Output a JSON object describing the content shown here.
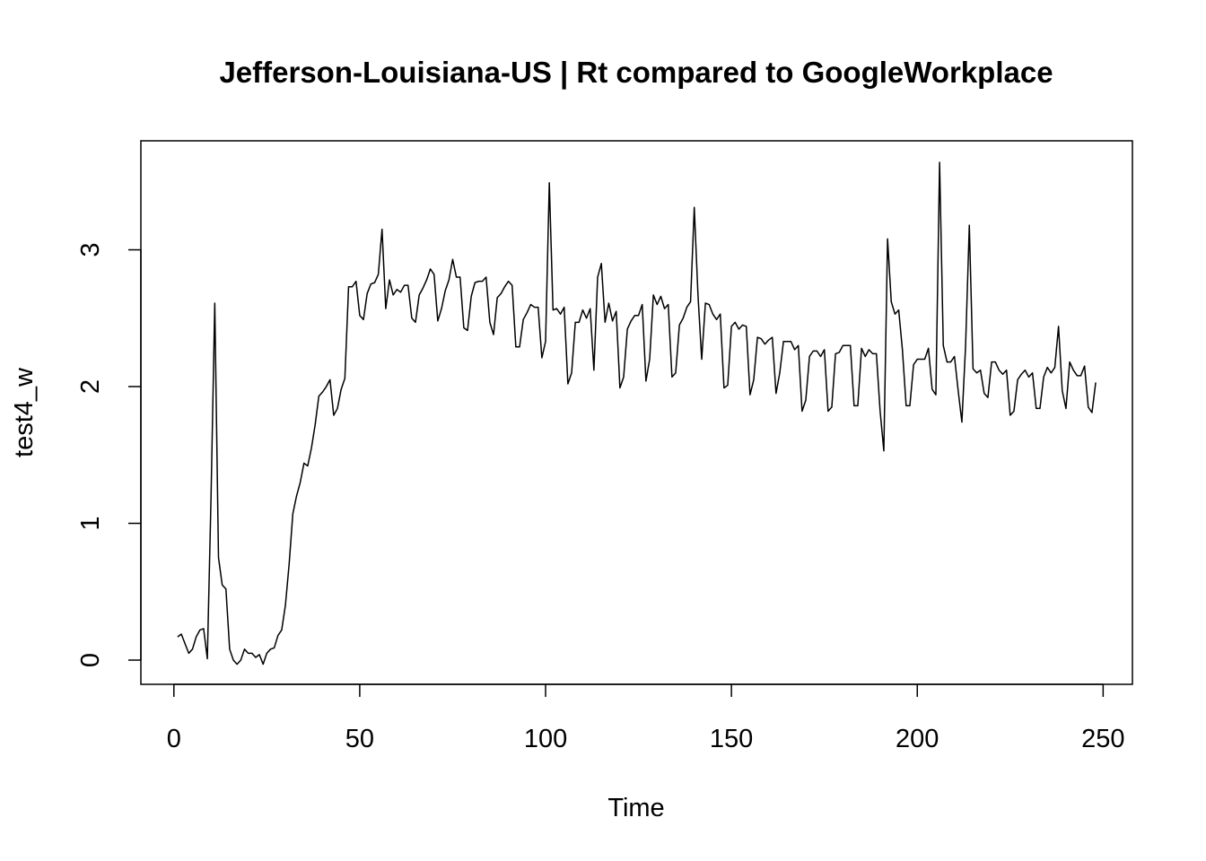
{
  "chart_data": {
    "type": "line",
    "title": "Jefferson-Louisiana-US | Rt compared to GoogleWorkplace",
    "x_label": "Time",
    "y_label": "test4_w",
    "series": [
      {
        "name": "test4_w",
        "color": "#000000",
        "x": [
          1,
          2,
          3,
          4,
          5,
          6,
          7,
          8,
          9,
          10,
          11,
          12,
          13,
          14,
          15,
          16,
          17,
          18,
          19,
          20,
          21,
          22,
          23,
          24,
          25,
          26,
          27,
          28,
          29,
          30,
          31,
          32,
          33,
          34,
          35,
          36,
          37,
          38,
          39,
          40,
          41,
          42,
          43,
          44,
          45,
          46,
          47,
          48,
          49,
          50,
          51,
          52,
          53,
          54,
          55,
          56,
          57,
          58,
          59,
          60,
          61,
          62,
          63,
          64,
          65,
          66,
          67,
          68,
          69,
          70,
          71,
          72,
          73,
          74,
          75,
          76,
          77,
          78,
          79,
          80,
          81,
          82,
          83,
          84,
          85,
          86,
          87,
          88,
          89,
          90,
          91,
          92,
          93,
          94,
          95,
          96,
          97,
          98,
          99,
          100,
          101,
          102,
          103,
          104,
          105,
          106,
          107,
          108,
          109,
          110,
          111,
          112,
          113,
          114,
          115,
          116,
          117,
          118,
          119,
          120,
          121,
          122,
          123,
          124,
          125,
          126,
          127,
          128,
          129,
          130,
          131,
          132,
          133,
          134,
          135,
          136,
          137,
          138,
          139,
          140,
          141,
          142,
          143,
          144,
          145,
          146,
          147,
          148,
          149,
          150,
          151,
          152,
          153,
          154,
          155,
          156,
          157,
          158,
          159,
          160,
          161,
          162,
          163,
          164,
          165,
          166,
          167,
          168,
          169,
          170,
          171,
          172,
          173,
          174,
          175,
          176,
          177,
          178,
          179,
          180,
          181,
          182,
          183,
          184,
          185,
          186,
          187,
          188,
          189,
          190,
          191,
          192,
          193,
          194,
          195,
          196,
          197,
          198,
          199,
          200,
          201,
          202,
          203,
          204,
          205,
          206,
          207,
          208,
          209,
          210,
          211,
          212,
          213,
          214,
          215,
          216,
          217,
          218,
          219,
          220,
          221,
          222,
          223,
          224,
          225,
          226,
          227,
          228,
          229,
          230,
          231,
          232,
          233,
          234,
          235,
          236,
          237,
          238,
          239,
          240,
          241,
          242,
          243,
          244,
          245,
          246,
          247,
          248
        ],
        "values": [
          0.17,
          0.19,
          0.12,
          0.05,
          0.08,
          0.17,
          0.22,
          0.23,
          0.01,
          1.2,
          2.61,
          0.75,
          0.55,
          0.52,
          0.08,
          0.0,
          -0.03,
          0.0,
          0.08,
          0.05,
          0.05,
          0.02,
          0.04,
          -0.03,
          0.05,
          0.08,
          0.09,
          0.18,
          0.22,
          0.4,
          0.7,
          1.07,
          1.2,
          1.3,
          1.44,
          1.42,
          1.55,
          1.72,
          1.93,
          1.96,
          2.0,
          2.05,
          1.79,
          1.84,
          1.98,
          2.06,
          2.73,
          2.73,
          2.77,
          2.52,
          2.49,
          2.68,
          2.75,
          2.76,
          2.82,
          3.15,
          2.57,
          2.78,
          2.67,
          2.71,
          2.69,
          2.74,
          2.74,
          2.5,
          2.47,
          2.67,
          2.72,
          2.78,
          2.86,
          2.82,
          2.48,
          2.57,
          2.7,
          2.78,
          2.93,
          2.8,
          2.8,
          2.43,
          2.41,
          2.66,
          2.76,
          2.77,
          2.77,
          2.8,
          2.47,
          2.38,
          2.65,
          2.68,
          2.73,
          2.77,
          2.74,
          2.29,
          2.29,
          2.49,
          2.54,
          2.6,
          2.58,
          2.58,
          2.21,
          2.33,
          3.49,
          2.56,
          2.57,
          2.53,
          2.58,
          2.02,
          2.1,
          2.47,
          2.47,
          2.56,
          2.5,
          2.57,
          2.12,
          2.8,
          2.9,
          2.47,
          2.61,
          2.48,
          2.55,
          1.99,
          2.07,
          2.42,
          2.48,
          2.52,
          2.52,
          2.6,
          2.04,
          2.2,
          2.67,
          2.6,
          2.66,
          2.57,
          2.6,
          2.07,
          2.1,
          2.45,
          2.5,
          2.58,
          2.62,
          3.31,
          2.67,
          2.2,
          2.61,
          2.6,
          2.53,
          2.49,
          2.53,
          1.99,
          2.01,
          2.44,
          2.47,
          2.42,
          2.45,
          2.44,
          1.94,
          2.05,
          2.36,
          2.35,
          2.31,
          2.34,
          2.36,
          1.95,
          2.1,
          2.33,
          2.33,
          2.33,
          2.27,
          2.3,
          1.82,
          1.9,
          2.22,
          2.26,
          2.26,
          2.22,
          2.27,
          1.82,
          1.85,
          2.24,
          2.25,
          2.3,
          2.3,
          2.3,
          1.86,
          1.86,
          2.28,
          2.22,
          2.27,
          2.24,
          2.24,
          1.82,
          1.53,
          3.08,
          2.62,
          2.53,
          2.56,
          2.27,
          1.86,
          1.86,
          2.16,
          2.2,
          2.2,
          2.2,
          2.28,
          1.98,
          1.94,
          3.64,
          2.3,
          2.18,
          2.18,
          2.22,
          1.97,
          1.74,
          2.3,
          3.18,
          2.13,
          2.1,
          2.12,
          1.95,
          1.92,
          2.18,
          2.18,
          2.12,
          2.09,
          2.12,
          1.79,
          1.82,
          2.05,
          2.09,
          2.12,
          2.07,
          2.1,
          1.84,
          1.84,
          2.07,
          2.14,
          2.1,
          2.14,
          2.44,
          1.97,
          1.84,
          2.18,
          2.12,
          2.08,
          2.08,
          2.15,
          1.85,
          1.81,
          2.03
        ]
      }
    ],
    "xlim": [
      -8.88,
      257.88
    ],
    "xticks": [
      0,
      50,
      100,
      150,
      200,
      250
    ],
    "ylim": [
      -0.177,
      3.797
    ],
    "yticks": [
      0,
      1,
      2,
      3
    ],
    "grid": false
  }
}
